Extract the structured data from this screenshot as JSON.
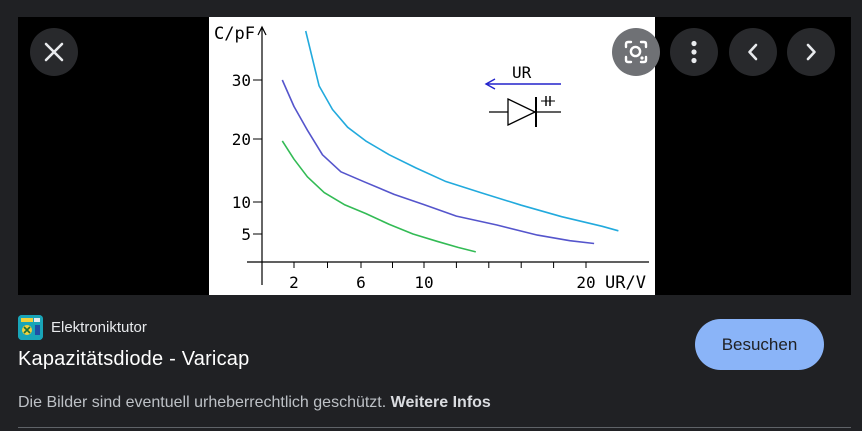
{
  "controls": {
    "close_icon": "close-icon",
    "lens_icon": "lens-icon",
    "more_icon": "more-vert-icon",
    "prev_icon": "chevron-left-icon",
    "next_icon": "chevron-right-icon"
  },
  "image": {
    "chart_data": {
      "type": "line",
      "ylabel": "C/pF",
      "xlabel": "UR/V",
      "x_ticks": [
        "2",
        "6",
        "10",
        "20"
      ],
      "y_ticks": [
        "30",
        "20",
        "10",
        "5"
      ],
      "series": [
        {
          "color": "#22aadd",
          "points": [
            [
              2.7,
              36
            ],
            [
              3.5,
              29
            ],
            [
              4.3,
              25
            ],
            [
              5.2,
              22
            ],
            [
              6.3,
              19.7
            ],
            [
              7.8,
              17.5
            ],
            [
              9.5,
              15.4
            ],
            [
              11.3,
              13.3
            ],
            [
              13.5,
              11.5
            ],
            [
              16,
              9.5
            ],
            [
              18.5,
              7.7
            ],
            [
              21,
              6.2
            ],
            [
              22,
              5.5
            ]
          ]
        },
        {
          "color": "#5555cc",
          "points": [
            [
              1.3,
              30
            ],
            [
              2,
              25.5
            ],
            [
              2.8,
              21.5
            ],
            [
              3.7,
              17.5
            ],
            [
              4.8,
              14.8
            ],
            [
              6.2,
              13.2
            ],
            [
              8.1,
              11.2
            ],
            [
              10,
              9.6
            ],
            [
              12,
              7.8
            ],
            [
              14.5,
              6.4
            ],
            [
              17,
              4.8
            ],
            [
              19,
              3.8
            ],
            [
              20.5,
              3.3
            ]
          ]
        },
        {
          "color": "#33bb55",
          "points": [
            [
              1.3,
              19.7
            ],
            [
              2,
              16.8
            ],
            [
              2.8,
              14
            ],
            [
              3.8,
              11.5
            ],
            [
              5,
              9.6
            ],
            [
              6.3,
              8.2
            ],
            [
              7.8,
              6.5
            ],
            [
              9.3,
              5
            ],
            [
              10.8,
              3.7
            ],
            [
              12.1,
              2.6
            ],
            [
              13.2,
              1.8
            ]
          ]
        }
      ]
    },
    "annotation": {
      "arrow_label": "UR",
      "symbol": "diode-capacitor-icon",
      "arrow_color": "#2222cc"
    }
  },
  "source": {
    "favicon": "elektroniktutor-favicon-icon",
    "name": "Elektroniktutor"
  },
  "title": "Kapazitätsdiode - Varicap",
  "visit_button": "Besuchen",
  "copyright": {
    "text": "Die Bilder sind eventuell urheberrechtlich geschützt.",
    "link": "Weitere Infos"
  },
  "colors": {
    "background": "#202124",
    "accent": "#8ab4f8"
  }
}
